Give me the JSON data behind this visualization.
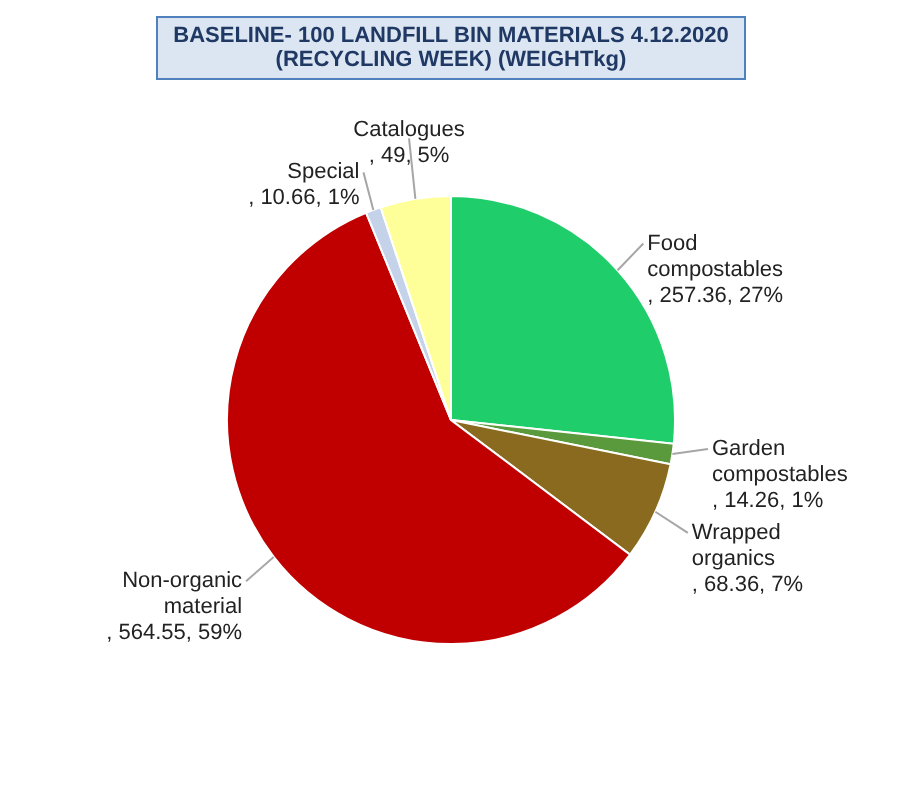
{
  "chart_data": {
    "type": "pie",
    "title": "BASELINE- 100 LANDFILL BIN MATERIALS 4.12.2020\n(RECYCLING WEEK) (WEIGHTkg)",
    "categories": [
      "Food compostables",
      "Garden compostables",
      "Wrapped organics",
      "Non-organic material",
      "Special",
      "Catalogues"
    ],
    "values": [
      257.36,
      14.26,
      68.36,
      564.55,
      10.66,
      49
    ],
    "colors": [
      "#1fce6a",
      "#5b9a3c",
      "#8a6a1e",
      "#c00000",
      "#c5d3ea",
      "#ffff99"
    ],
    "value_labels": [
      ", 257.36, 27%",
      ", 14.26, 1%",
      ", 68.36, 7%",
      ", 564.55, 59%",
      ", 10.66, 1%",
      ", 49, 5%"
    ]
  }
}
